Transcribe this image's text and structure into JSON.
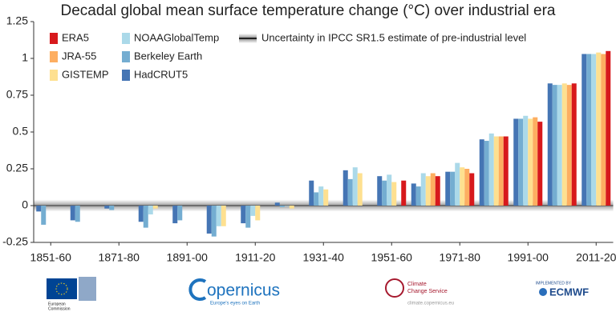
{
  "chart_data": {
    "type": "bar",
    "title": "Decadal global mean surface temperature change (°C) over industrial era",
    "categories": [
      "1851-60",
      null,
      "1871-80",
      null,
      "1891-00",
      null,
      "1911-20",
      null,
      "1931-40",
      null,
      "1951-60",
      null,
      "1971-80",
      null,
      "1991-00",
      null,
      "2011-20"
    ],
    "series": [
      {
        "name": "HadCRUT5",
        "color": "#4575b4",
        "values": [
          -0.04,
          -0.1,
          -0.02,
          -0.11,
          -0.12,
          -0.19,
          -0.12,
          0.02,
          0.17,
          0.24,
          0.2,
          0.15,
          0.23,
          0.45,
          0.59,
          0.83,
          1.03
        ]
      },
      {
        "name": "Berkeley Earth",
        "color": "#74add1",
        "values": [
          -0.13,
          -0.11,
          -0.03,
          -0.15,
          -0.1,
          -0.21,
          -0.15,
          -0.01,
          0.09,
          0.18,
          0.17,
          0.13,
          0.23,
          0.44,
          0.59,
          0.82,
          1.03
        ]
      },
      {
        "name": "NOAAGlobalTemp",
        "color": "#abd9e9",
        "values": [
          null,
          null,
          null,
          -0.06,
          null,
          -0.14,
          -0.07,
          0.0,
          0.13,
          0.26,
          0.21,
          0.22,
          0.29,
          0.49,
          0.61,
          0.82,
          1.03
        ]
      },
      {
        "name": "GISTEMP",
        "color": "#fee090",
        "values": [
          null,
          null,
          null,
          -0.02,
          null,
          -0.14,
          -0.1,
          -0.02,
          0.11,
          0.22,
          0.16,
          0.2,
          0.26,
          0.47,
          0.59,
          0.83,
          1.04
        ]
      },
      {
        "name": "JRA-55",
        "color": "#fdae61",
        "values": [
          null,
          null,
          null,
          null,
          null,
          null,
          null,
          null,
          null,
          null,
          null,
          0.22,
          0.25,
          0.47,
          0.6,
          0.82,
          1.03
        ]
      },
      {
        "name": "ERA5",
        "color": "#d7191c",
        "values": [
          null,
          null,
          null,
          null,
          null,
          null,
          null,
          null,
          null,
          null,
          0.17,
          0.2,
          0.22,
          0.47,
          0.57,
          0.83,
          1.05
        ]
      }
    ],
    "uncertainty_band": {
      "label": "Uncertainty in IPCC SR1.5 estimate of pre-industrial level",
      "range": [
        -0.04,
        0.04
      ]
    },
    "ylim": [
      -0.25,
      1.25
    ],
    "yticks": [
      -0.25,
      0,
      0.25,
      0.5,
      0.75,
      1,
      1.25
    ]
  },
  "footer": {
    "ec": [
      "European",
      "Commission"
    ],
    "copernicus": "opernicus",
    "copernicus_tagline": "Europe's eyes on Earth",
    "c3s": [
      "Climate",
      "Change Service"
    ],
    "c3s_url": "climate.copernicus.eu",
    "ecmwf_top": "IMPLEMENTED BY",
    "ecmwf": "ECMWF"
  }
}
